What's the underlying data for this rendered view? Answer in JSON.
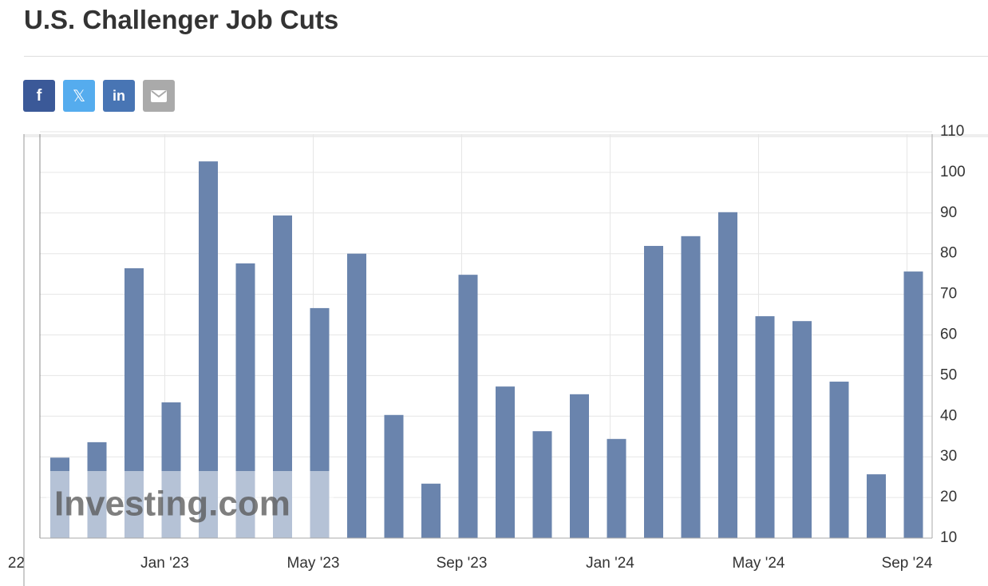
{
  "header": {
    "title": "U.S. Challenger Job Cuts",
    "share": [
      "f",
      "𝕏",
      "in"
    ]
  },
  "chart_data": {
    "type": "bar",
    "color": "#6a84ad",
    "values": [
      29.8,
      33.6,
      76.4,
      43.4,
      102.7,
      77.6,
      89.4,
      66.6,
      80,
      40.3,
      23.4,
      74.8,
      47.3,
      36.3,
      45.4,
      34.4,
      81.9,
      84.3,
      90.2,
      64.6,
      63.4,
      48.5,
      25.7,
      75.6
    ],
    "xticks": [
      {
        "value": -1,
        "label": "22"
      },
      {
        "value": 3,
        "label": "Jan '23"
      },
      {
        "value": 7,
        "label": "May '23"
      },
      {
        "value": 11,
        "label": "Sep '23"
      },
      {
        "value": 15,
        "label": "Jan '24"
      },
      {
        "value": 19,
        "label": "May '24"
      },
      {
        "value": 23,
        "label": "Sep '24"
      }
    ],
    "ylim": [
      10,
      110
    ],
    "yticks": [
      10,
      20,
      30,
      40,
      50,
      60,
      70,
      80,
      90,
      100,
      110
    ],
    "grid": true,
    "watermark": "Investing.com"
  }
}
